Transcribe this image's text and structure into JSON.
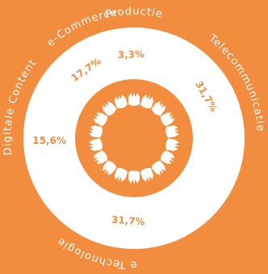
{
  "chart_data": {
    "type": "pie",
    "title": "",
    "categories": [
      "Productie",
      "Telecommunicatie",
      "Informatie Technologie",
      "Digitale Content",
      "e-Commerce"
    ],
    "values": [
      3.3,
      31.7,
      31.7,
      15.6,
      17.7
    ],
    "value_labels": [
      "3,3%",
      "31,7%",
      "31,7%",
      "15,6%",
      "17,7%"
    ],
    "legend": "none",
    "colors": {
      "background": "#F28C3F",
      "ring": "#FFFFFF",
      "center": "#F28C3F",
      "value_text": "#F28C3F",
      "category_text": "#FFFFFF",
      "motif": "#FFFFFF"
    }
  }
}
